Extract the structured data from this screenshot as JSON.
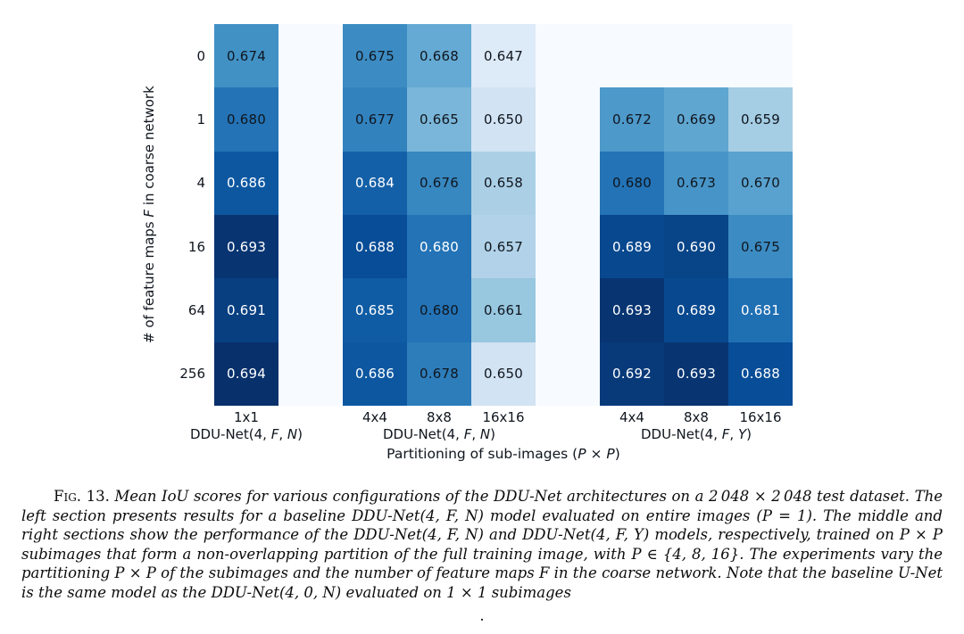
{
  "chart_data": {
    "type": "heatmap",
    "ylabel": "# of feature maps F in coarse network",
    "xlabel": "Partitioning of sub-images (P × P)",
    "row_labels": [
      "0",
      "1",
      "4",
      "16",
      "64",
      "256"
    ],
    "colormap": {
      "name": "Blues",
      "vmin": 0.64,
      "vmax": 0.694,
      "nan_color": "#f7fbff",
      "stops": [
        "#f7fbff",
        "#deebf7",
        "#c6dbef",
        "#9ecae1",
        "#6baed6",
        "#4292c6",
        "#2171b5",
        "#08519c",
        "#08306b"
      ],
      "text_dark": "#10161e",
      "text_light": "#ffffff"
    },
    "sections": [
      {
        "label": "DDU-Net(4, F, N)",
        "col_labels": [
          "1x1"
        ],
        "values": [
          [
            0.674
          ],
          [
            0.68
          ],
          [
            0.686
          ],
          [
            0.693
          ],
          [
            0.691
          ],
          [
            0.694
          ]
        ],
        "white_text": [
          [
            0
          ],
          [
            0
          ],
          [
            1
          ],
          [
            1
          ],
          [
            1
          ],
          [
            1
          ]
        ]
      },
      {
        "label": "DDU-Net(4, F, N)",
        "col_labels": [
          "4x4",
          "8x8",
          "16x16"
        ],
        "values": [
          [
            0.675,
            0.668,
            0.647
          ],
          [
            0.677,
            0.665,
            0.65
          ],
          [
            0.684,
            0.676,
            0.658
          ],
          [
            0.688,
            0.68,
            0.657
          ],
          [
            0.685,
            0.68,
            0.661
          ],
          [
            0.686,
            0.678,
            0.65
          ]
        ],
        "white_text": [
          [
            0,
            0,
            0
          ],
          [
            0,
            0,
            0
          ],
          [
            1,
            0,
            0
          ],
          [
            1,
            1,
            0
          ],
          [
            1,
            0,
            0
          ],
          [
            1,
            0,
            0
          ]
        ]
      },
      {
        "label": "DDU-Net(4, F, Y)",
        "col_labels": [
          "4x4",
          "8x8",
          "16x16"
        ],
        "values": [
          [
            null,
            null,
            null
          ],
          [
            0.672,
            0.669,
            0.659
          ],
          [
            0.68,
            0.673,
            0.67
          ],
          [
            0.689,
            0.69,
            0.675
          ],
          [
            0.693,
            0.689,
            0.681
          ],
          [
            0.692,
            0.693,
            0.688
          ]
        ],
        "white_text": [
          [
            0,
            0,
            0
          ],
          [
            0,
            0,
            0
          ],
          [
            0,
            0,
            0
          ],
          [
            1,
            1,
            0
          ],
          [
            1,
            1,
            1
          ],
          [
            1,
            1,
            1
          ]
        ]
      }
    ],
    "layout": {
      "col_offsets": [
        0,
        2,
        6
      ],
      "n_grid_cols": 9,
      "n_rows": 6,
      "gap_is_nan": true,
      "grid": "off",
      "legend": "none"
    }
  },
  "caption": {
    "label": "Fig. 13.",
    "text": "Mean IoU scores for various configurations of the DDU-Net architectures on a 2 048 × 2 048 test dataset. The left section presents results for a baseline DDU-Net(4, F, N) model evaluated on entire images (P = 1). The middle and right sections show the performance of the DDU-Net(4, F, N) and DDU-Net(4, F, Y) models, respectively, trained on P × P subimages that form a non-overlapping partition of the full training image, with P ∈ {4, 8, 16}. The experiments vary the partitioning P × P of the subimages and the number of feature maps F in the coarse network. Note that the baseline U-Net is the same model as the DDU-Net(4, 0, N) evaluated on 1 × 1 subimages",
    "trailing_period": "."
  }
}
